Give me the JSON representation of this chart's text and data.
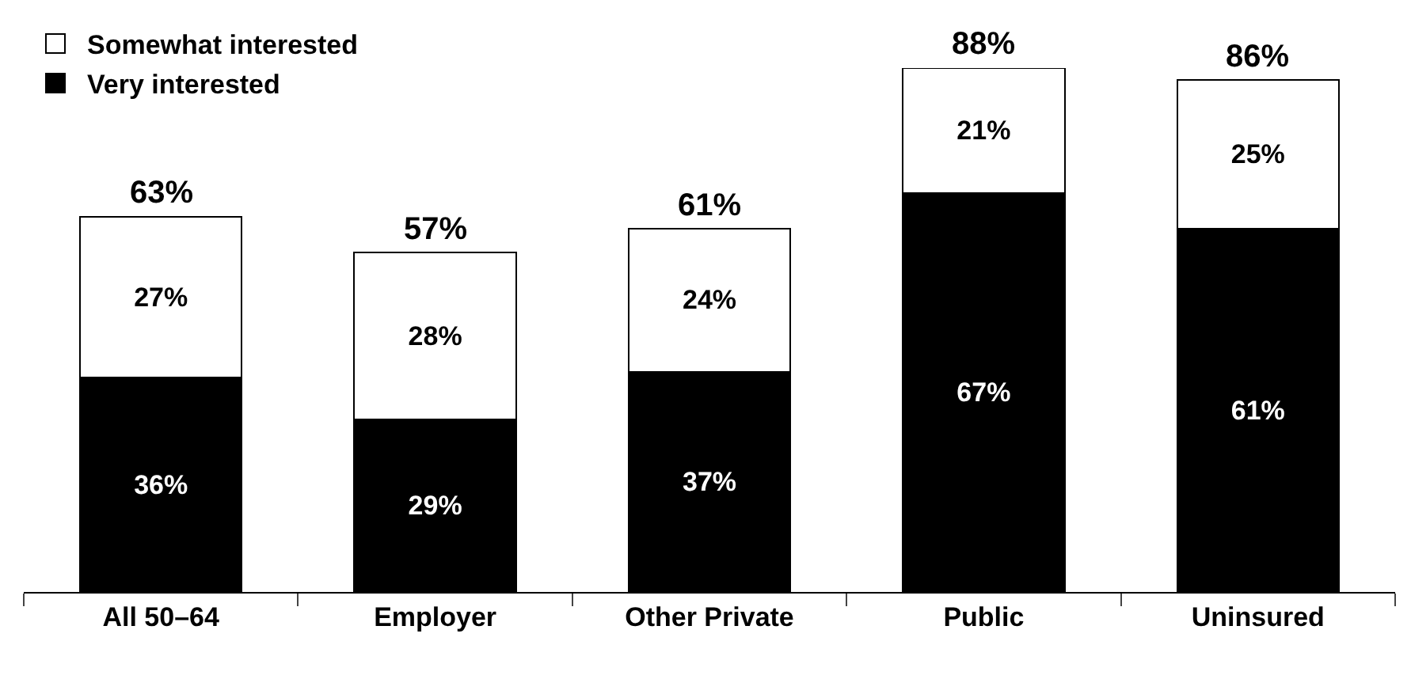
{
  "chart_data": {
    "type": "bar",
    "stacked": true,
    "legend": "top left",
    "categories": [
      "All 50–64",
      "Employer",
      "Other Private",
      "Public",
      "Uninsured"
    ],
    "series": [
      {
        "name": "Very interested",
        "color": "#000000",
        "values": [
          36,
          29,
          37,
          67,
          61
        ],
        "value_labels": [
          "36%",
          "29%",
          "37%",
          "67%",
          "61%"
        ]
      },
      {
        "name": "Somewhat interested",
        "color": "#ffffff",
        "values": [
          27,
          28,
          24,
          21,
          25
        ],
        "value_labels": [
          "27%",
          "28%",
          "24%",
          "21%",
          "25%"
        ]
      }
    ],
    "totals": [
      "63%",
      "57%",
      "61%",
      "88%",
      "86%"
    ]
  }
}
